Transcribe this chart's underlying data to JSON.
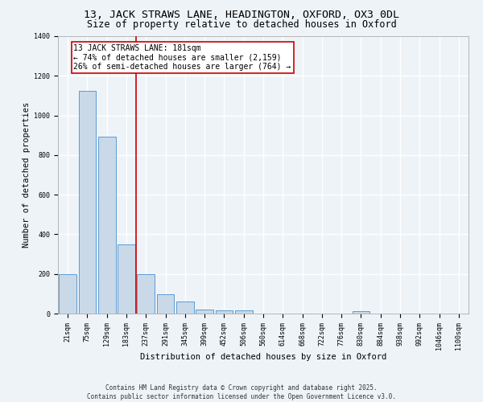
{
  "title": "13, JACK STRAWS LANE, HEADINGTON, OXFORD, OX3 0DL",
  "subtitle": "Size of property relative to detached houses in Oxford",
  "xlabel": "Distribution of detached houses by size in Oxford",
  "ylabel": "Number of detached properties",
  "bar_categories": [
    "21sqm",
    "75sqm",
    "129sqm",
    "183sqm",
    "237sqm",
    "291sqm",
    "345sqm",
    "399sqm",
    "452sqm",
    "506sqm",
    "560sqm",
    "614sqm",
    "668sqm",
    "722sqm",
    "776sqm",
    "830sqm",
    "884sqm",
    "938sqm",
    "992sqm",
    "1046sqm",
    "1100sqm"
  ],
  "bar_values": [
    197,
    1125,
    893,
    350,
    197,
    98,
    60,
    22,
    18,
    15,
    0,
    0,
    0,
    0,
    0,
    12,
    0,
    0,
    0,
    0,
    0
  ],
  "bar_color": "#c9d9e8",
  "bar_edge_color": "#5b9bd5",
  "background_color": "#eef3f8",
  "grid_color": "#ffffff",
  "red_line_x": 3.5,
  "annotation_text": "13 JACK STRAWS LANE: 181sqm\n← 74% of detached houses are smaller (2,159)\n26% of semi-detached houses are larger (764) →",
  "annotation_box_color": "#ffffff",
  "annotation_edge_color": "#cc0000",
  "annotation_text_color": "#000000",
  "red_line_color": "#cc0000",
  "ylim": [
    0,
    1400
  ],
  "yticks": [
    0,
    200,
    400,
    600,
    800,
    1000,
    1200,
    1400
  ],
  "footer_line1": "Contains HM Land Registry data © Crown copyright and database right 2025.",
  "footer_line2": "Contains public sector information licensed under the Open Government Licence v3.0.",
  "title_fontsize": 9.5,
  "subtitle_fontsize": 8.5,
  "axis_label_fontsize": 7.5,
  "tick_fontsize": 6,
  "annotation_fontsize": 7,
  "footer_fontsize": 5.5
}
